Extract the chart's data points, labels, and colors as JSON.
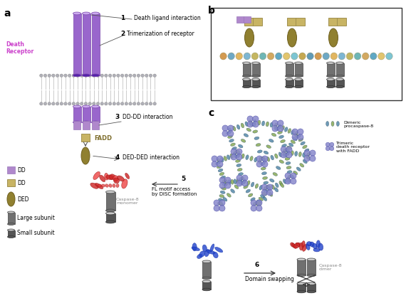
{
  "bg_color": "#ffffff",
  "panel_a_label": "a",
  "panel_b_label": "b",
  "panel_c_label": "c",
  "receptor_color": "#9966cc",
  "receptor_ec": "#7744aa",
  "receptor_dark": "#7744aa",
  "dd_receptor_color": "#b088cc",
  "dd_receptor_ec": "#9977bb",
  "dd_fadd_color": "#c8b464",
  "dd_fadd_ec": "#a09050",
  "ded_color": "#908030",
  "ded_ec": "#706020",
  "membrane_head_color": "#b0b0b8",
  "membrane_tail_color": "#cccccc",
  "large_subunit_color": "#707070",
  "small_subunit_color": "#555555",
  "caspase_red": "#cc2222",
  "caspase_blue": "#2244cc",
  "node_color": "#8888cc",
  "node_ec": "#5555aa",
  "link_color1": "#5588aa",
  "link_color2": "#88aa55",
  "arrow_color": "#333333",
  "death_receptor_label_color": "#cc44cc",
  "fadd_label_color": "#807030",
  "gray_label_color": "#888888",
  "text_color": "#111111",
  "legend_dd_receptor": "#b088cc",
  "legend_dd_fadd": "#c8b464",
  "legend_ded": "#908030"
}
